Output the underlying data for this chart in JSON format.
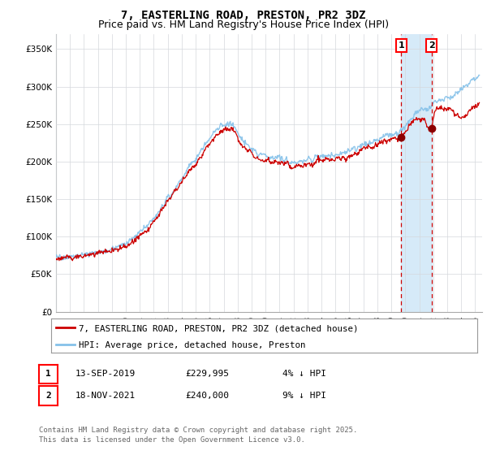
{
  "title": "7, EASTERLING ROAD, PRESTON, PR2 3DZ",
  "subtitle": "Price paid vs. HM Land Registry's House Price Index (HPI)",
  "ylabel_ticks": [
    "£0",
    "£50K",
    "£100K",
    "£150K",
    "£200K",
    "£250K",
    "£300K",
    "£350K"
  ],
  "ytick_values": [
    0,
    50000,
    100000,
    150000,
    200000,
    250000,
    300000,
    350000
  ],
  "ylim": [
    0,
    370000
  ],
  "xlim_start": 1995.0,
  "xlim_end": 2025.5,
  "sale1_date": 2019.7,
  "sale1_price": 229995,
  "sale2_date": 2021.88,
  "sale2_price": 240000,
  "hpi_color": "#85C1E9",
  "price_color": "#CC0000",
  "vline_color": "#CC0000",
  "shade_color": "#D6EAF8",
  "grid_color": "#D5D8DC",
  "bg_color": "#FFFFFF",
  "plot_bg_color": "#FFFFFF",
  "legend_line1": "7, EASTERLING ROAD, PRESTON, PR2 3DZ (detached house)",
  "legend_line2": "HPI: Average price, detached house, Preston",
  "table_row1": [
    "1",
    "13-SEP-2019",
    "£229,995",
    "4% ↓ HPI"
  ],
  "table_row2": [
    "2",
    "18-NOV-2021",
    "£240,000",
    "9% ↓ HPI"
  ],
  "footer": "Contains HM Land Registry data © Crown copyright and database right 2025.\nThis data is licensed under the Open Government Licence v3.0.",
  "title_fontsize": 10,
  "subtitle_fontsize": 9,
  "tick_fontsize": 7.5,
  "legend_fontsize": 8,
  "footer_fontsize": 6.5
}
